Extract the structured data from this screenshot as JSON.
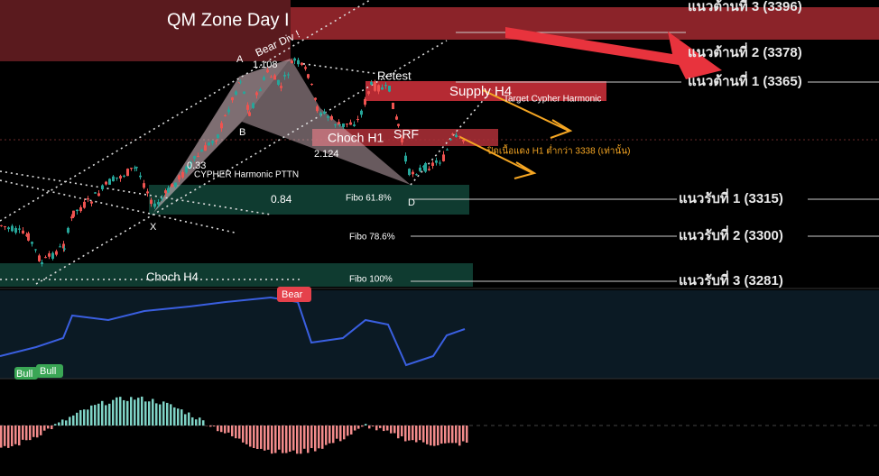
{
  "title": "QM Zone Day I",
  "levels": [
    "แนวต้านที่ 3 (3396)",
    "แนวต้านที่ 2 (3378)",
    "แนวต้านที่ 1 (3365)",
    "แนวรับที่ 1 (3315)",
    "แนวรับที่ 2 (3300)",
    "แนวรับที่ 3 (3281)"
  ],
  "pattern": {
    "a": "A",
    "ab": "1.108",
    "div": "Bear Div !",
    "b": "B",
    "xb": "0.33",
    "name": "CYPHER Harmonic PTTN",
    "x": "X",
    "ratio": "0.84",
    "cd": "2.124",
    "d": "D"
  },
  "zones": {
    "retest": "Retest",
    "supply": "Supply H4",
    "target": "Target Cypher Harmonic",
    "choch_h1": "Choch H1",
    "srf": "SRF",
    "note": "ปิดเนื้อแดง H1 ต่ำกว่า 3338 (เท่านั้น)",
    "fibo1": "Fibo 61.8%",
    "fibo2": "Fibo 78.6%",
    "fibo3": "Fibo 100%",
    "choch_h4": "Choch H4"
  },
  "rsi": {
    "bear": "Bear",
    "bull1": "Bull",
    "bull2": "Bull"
  }
}
